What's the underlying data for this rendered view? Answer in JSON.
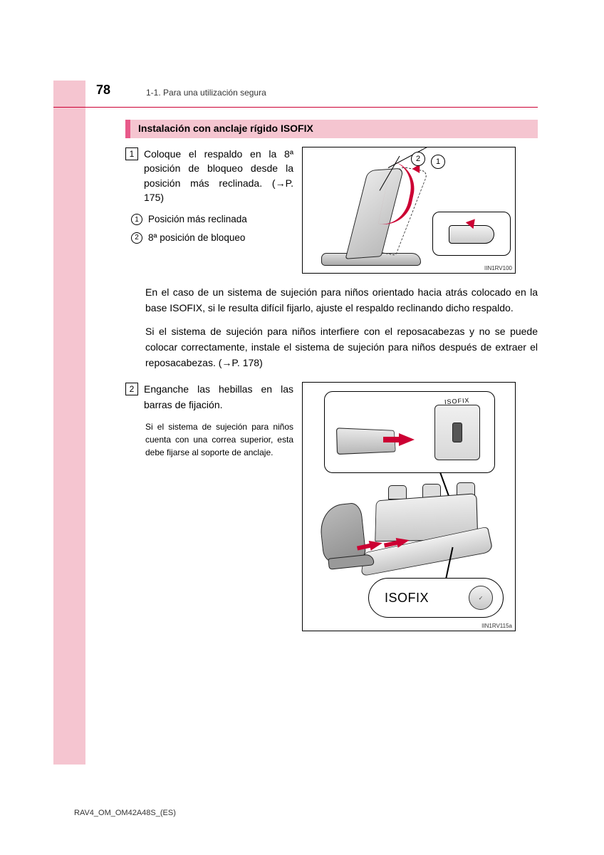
{
  "page": {
    "number": "78",
    "section_label": "1-1. Para una utilización segura",
    "footer_code": "RAV4_OM_OM42A48S_(ES)"
  },
  "colors": {
    "sidebar": "#f5c5d0",
    "title_accent": "#e85a8a",
    "title_bg": "#f5c5d0",
    "header_rule": "#cc0033",
    "arrow_red": "#cc0033"
  },
  "section": {
    "title": "Instalación con anclaje rígido ISOFIX"
  },
  "step1": {
    "num": "1",
    "text": "Coloque el respaldo en la 8ª posición de bloqueo desde la posición más reclinada. (→P. 175)",
    "sub1_num": "1",
    "sub1_text": "Posición más reclinada",
    "sub2_num": "2",
    "sub2_text": "8ª posición de bloqueo",
    "fig_id": "IIN1RV100",
    "fig_callout1": "1",
    "fig_callout2": "2"
  },
  "paragraphs": {
    "p1": "En el caso de un sistema de sujeción para niños orientado hacia atrás colocado en la base ISOFIX, si le resulta difícil fijarlo, ajuste el respaldo reclinando dicho respaldo.",
    "p2": "Si el sistema de sujeción para niños interfiere con el reposacabezas y no se puede colocar correctamente, instale el sistema de sujeción para niños después de extraer el reposacabezas. (→P. 178)"
  },
  "step2": {
    "num": "2",
    "text": "Enganche las hebillas en las barras de fijación.",
    "small_text": "Si el sistema de sujeción para niños cuenta con una correa superior, esta debe fijarse al soporte de anclaje.",
    "fig_id": "IIN1RV115a",
    "fig_top_label": "ISOFIX",
    "fig_bottom_label": "ISOFIX"
  }
}
